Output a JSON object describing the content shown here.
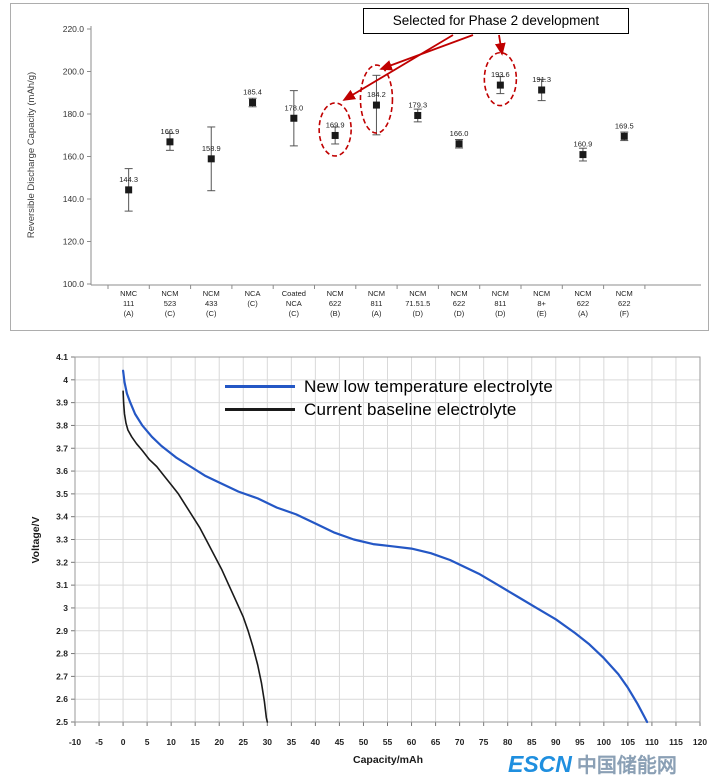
{
  "logo": {
    "text_en": "ESCN",
    "text_cn": "中国储能网",
    "color_en": "#1f8fdf",
    "color_cn": "#8ba0b5"
  },
  "chart_data": [
    {
      "type": "scatter",
      "title": "",
      "ylabel": "Reversible Discharge Capacity (mAh/g)",
      "ylim": [
        100,
        220
      ],
      "yticks": [
        220,
        200,
        180,
        160,
        140,
        120,
        100
      ],
      "categories": [
        [
          "NMC",
          "111",
          "(A)"
        ],
        [
          "NCM",
          "523",
          "(C)"
        ],
        [
          "NCM",
          "433",
          "(C)"
        ],
        [
          "NCA",
          "(C)"
        ],
        [
          "Coated",
          "NCA",
          "(C)"
        ],
        [
          "NCM",
          "622",
          "(B)"
        ],
        [
          "NCM",
          "811",
          "(A)"
        ],
        [
          "NCM",
          "71.51.5",
          "(D)"
        ],
        [
          "NCM",
          "622",
          "(D)"
        ],
        [
          "NCM",
          "811",
          "(D)"
        ],
        [
          "NCM",
          "8+",
          "(E)"
        ],
        [
          "NCM",
          "622",
          "(A)"
        ],
        [
          "NCM",
          "622",
          "(F)"
        ]
      ],
      "values": [
        144.3,
        166.9,
        158.9,
        185.4,
        178.0,
        169.9,
        184.2,
        179.3,
        166.0,
        193.6,
        191.3,
        160.9,
        169.5
      ],
      "errors": [
        10,
        4,
        15,
        2,
        13,
        4,
        14,
        3,
        2,
        4,
        5,
        3,
        2
      ],
      "annotation": "Selected for Phase 2 development",
      "selected_indices": [
        5,
        6,
        9
      ],
      "marker_color": "#1a1a1a",
      "error_color": "#555555",
      "highlight_color": "#c00000",
      "grid": false,
      "legend_position": "none"
    },
    {
      "type": "line",
      "xlabel": "Capacity/mAh",
      "ylabel": "Voltage/V",
      "xlim": [
        -10,
        120
      ],
      "xtick_step": 5,
      "ylim": [
        2.5,
        4.1
      ],
      "ytick_step": 0.1,
      "grid": true,
      "legend_position": "top-center",
      "series": [
        {
          "name": "New low temperature electrolyte",
          "color": "#2457c5",
          "stroke_width": 2.2,
          "points": [
            [
              0,
              4.04
            ],
            [
              0.3,
              3.99
            ],
            [
              0.8,
              3.94
            ],
            [
              1.5,
              3.9
            ],
            [
              2.5,
              3.85
            ],
            [
              4,
              3.8
            ],
            [
              6,
              3.75
            ],
            [
              8,
              3.71
            ],
            [
              11,
              3.66
            ],
            [
              14,
              3.62
            ],
            [
              17,
              3.58
            ],
            [
              20,
              3.55
            ],
            [
              24,
              3.51
            ],
            [
              28,
              3.48
            ],
            [
              32,
              3.44
            ],
            [
              36,
              3.41
            ],
            [
              40,
              3.37
            ],
            [
              44,
              3.33
            ],
            [
              48,
              3.3
            ],
            [
              52,
              3.28
            ],
            [
              56,
              3.27
            ],
            [
              60,
              3.26
            ],
            [
              64,
              3.24
            ],
            [
              68,
              3.21
            ],
            [
              71,
              3.18
            ],
            [
              74,
              3.15
            ],
            [
              78,
              3.1
            ],
            [
              82,
              3.05
            ],
            [
              86,
              3.0
            ],
            [
              90,
              2.95
            ],
            [
              94,
              2.89
            ],
            [
              97,
              2.84
            ],
            [
              100,
              2.78
            ],
            [
              103,
              2.71
            ],
            [
              105,
              2.65
            ],
            [
              107,
              2.58
            ],
            [
              108.5,
              2.52
            ],
            [
              109,
              2.5
            ]
          ]
        },
        {
          "name": "Current baseline electrolyte",
          "color": "#1a1a1a",
          "stroke_width": 1.6,
          "points": [
            [
              0,
              3.95
            ],
            [
              0.1,
              3.9
            ],
            [
              0.3,
              3.85
            ],
            [
              0.6,
              3.81
            ],
            [
              1,
              3.78
            ],
            [
              1.8,
              3.75
            ],
            [
              2.8,
              3.72
            ],
            [
              4,
              3.69
            ],
            [
              5.5,
              3.65
            ],
            [
              7,
              3.62
            ],
            [
              8.5,
              3.58
            ],
            [
              10,
              3.54
            ],
            [
              11.5,
              3.5
            ],
            [
              13,
              3.45
            ],
            [
              14.5,
              3.4
            ],
            [
              16,
              3.35
            ],
            [
              17.5,
              3.29
            ],
            [
              19,
              3.23
            ],
            [
              20.5,
              3.17
            ],
            [
              22,
              3.1
            ],
            [
              23.5,
              3.03
            ],
            [
              25,
              2.96
            ],
            [
              26,
              2.9
            ],
            [
              27,
              2.83
            ],
            [
              28,
              2.75
            ],
            [
              28.8,
              2.67
            ],
            [
              29.4,
              2.59
            ],
            [
              29.8,
              2.52
            ],
            [
              30,
              2.5
            ]
          ]
        }
      ]
    }
  ]
}
